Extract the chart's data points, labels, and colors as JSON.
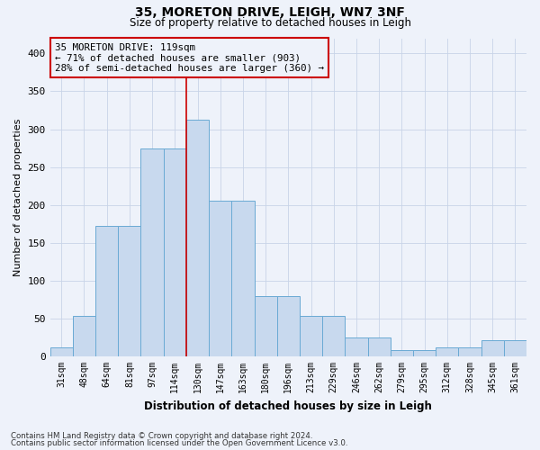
{
  "title": "35, MORETON DRIVE, LEIGH, WN7 3NF",
  "subtitle": "Size of property relative to detached houses in Leigh",
  "xlabel": "Distribution of detached houses by size in Leigh",
  "ylabel": "Number of detached properties",
  "footnote1": "Contains HM Land Registry data © Crown copyright and database right 2024.",
  "footnote2": "Contains public sector information licensed under the Open Government Licence v3.0.",
  "bar_color": "#c8d9ee",
  "bar_edge_color": "#6aaad4",
  "grid_color": "#c8d4e8",
  "annotation_box_color": "#cc0000",
  "vline_color": "#cc0000",
  "categories": [
    "31sqm",
    "48sqm",
    "64sqm",
    "81sqm",
    "97sqm",
    "114sqm",
    "130sqm",
    "147sqm",
    "163sqm",
    "180sqm",
    "196sqm",
    "213sqm",
    "229sqm",
    "246sqm",
    "262sqm",
    "279sqm",
    "295sqm",
    "312sqm",
    "328sqm",
    "345sqm",
    "361sqm"
  ],
  "values": [
    12,
    53,
    172,
    172,
    275,
    275,
    312,
    205,
    205,
    80,
    80,
    53,
    53,
    25,
    25,
    8,
    8,
    12,
    12,
    22,
    22
  ],
  "annotation_line1": "35 MORETON DRIVE: 119sqm",
  "annotation_line2": "← 71% of detached houses are smaller (903)",
  "annotation_line3": "28% of semi-detached houses are larger (360) →",
  "vline_position": 5.5,
  "ylim": [
    0,
    420
  ],
  "yticks": [
    0,
    50,
    100,
    150,
    200,
    250,
    300,
    350,
    400
  ],
  "background_color": "#eef2fa"
}
